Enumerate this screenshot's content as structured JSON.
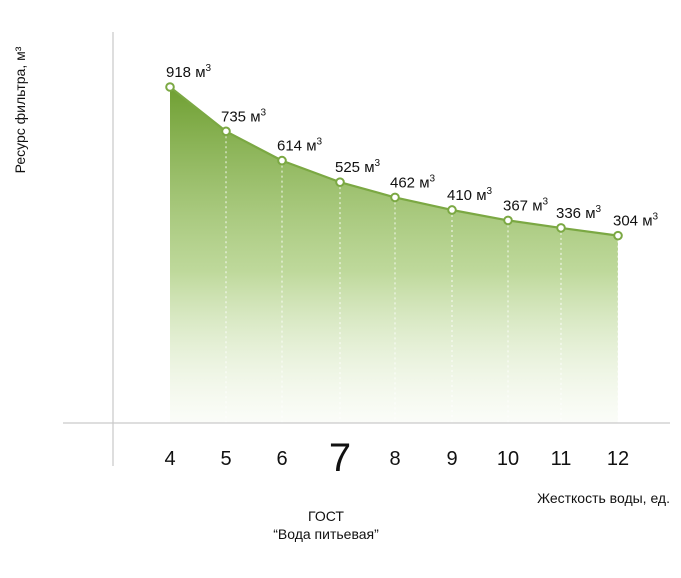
{
  "chart_data": {
    "type": "area",
    "categories": [
      "4",
      "5",
      "6",
      "7",
      "8",
      "9",
      "10",
      "11",
      "12"
    ],
    "highlighted_category": "7",
    "series": [
      {
        "x": [
          4,
          5,
          6,
          7,
          8,
          9,
          10,
          11,
          12
        ],
        "values": [
          918,
          735,
          614,
          525,
          462,
          410,
          367,
          336,
          304
        ],
        "labels": [
          "918",
          "735",
          "614",
          "525",
          "462",
          "410",
          "367",
          "336",
          "304"
        ]
      }
    ],
    "unit": "м",
    "unit_sup": "3",
    "ylabel": "Ресурс фильтра, м³",
    "xlabel": "Жесткость воды, ед.",
    "annotation": {
      "line1": "ГОСТ",
      "line2": "“Вода питьевая”"
    },
    "color": "#7ba843",
    "ylim": [
      0,
      1000
    ],
    "grid": false
  }
}
